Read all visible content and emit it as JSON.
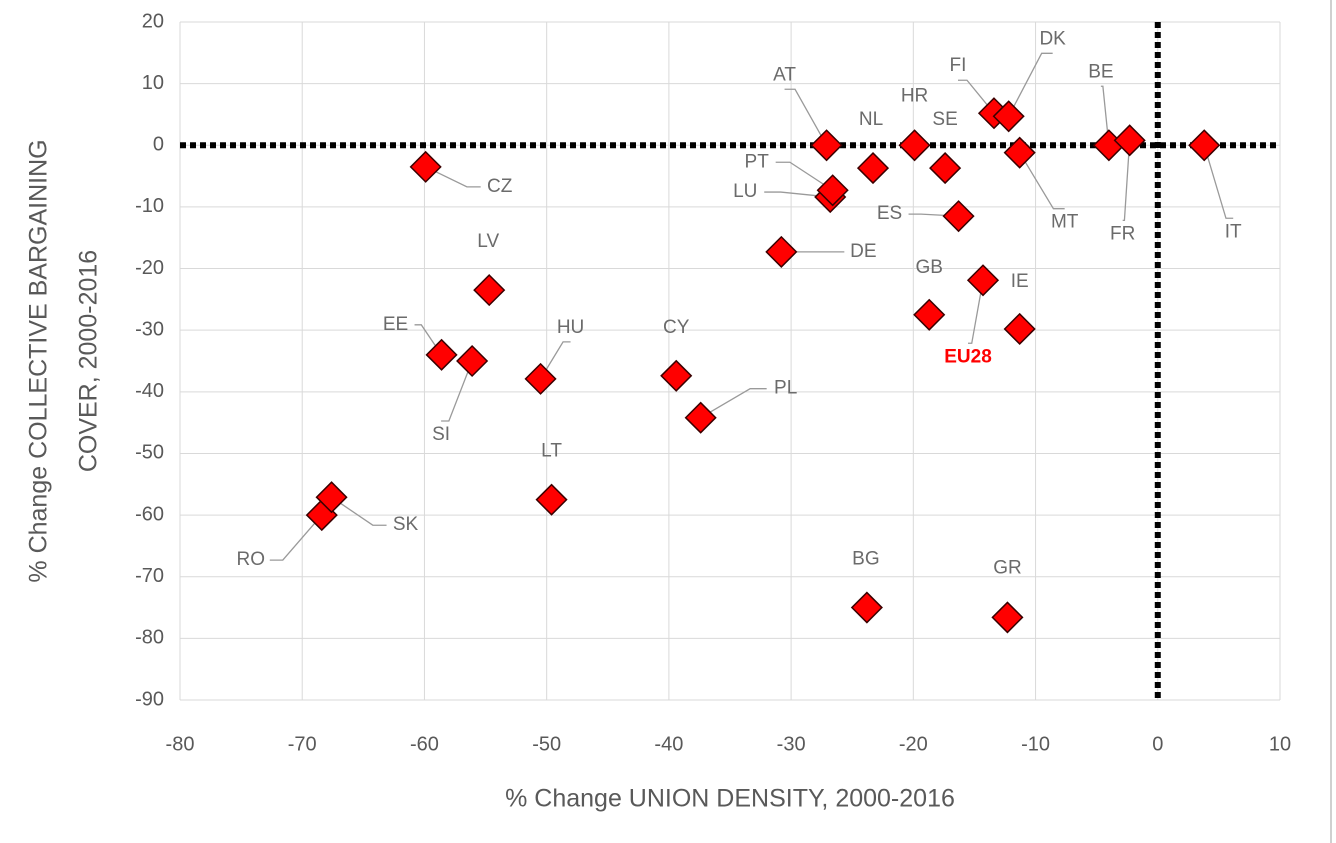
{
  "chart_data": {
    "type": "scatter",
    "xlabel": "% Change UNION DENSITY, 2000-2016",
    "ylabel": [
      "% Change COLLECTIVE BARGAINING",
      "COVER, 2000-2016"
    ],
    "xlim": [
      -80,
      10
    ],
    "ylim": [
      -90,
      20
    ],
    "xticks": [
      -80,
      -70,
      -60,
      -50,
      -40,
      -30,
      -20,
      -10,
      0,
      10
    ],
    "yticks": [
      -90,
      -80,
      -70,
      -60,
      -50,
      -40,
      -30,
      -20,
      -10,
      0,
      10,
      20
    ],
    "grid": true,
    "ref_x": 0,
    "ref_y": 0,
    "color": "#ff0000",
    "points": [
      {
        "label": "AT",
        "x": -27.1,
        "y": 0
      },
      {
        "label": "CZ",
        "x": -59.9,
        "y": -3.5
      },
      {
        "label": "LV",
        "x": -54.7,
        "y": -23.5
      },
      {
        "label": "EE",
        "x": -58.6,
        "y": -34.0
      },
      {
        "label": "SI",
        "x": -56.1,
        "y": -35.0
      },
      {
        "label": "HU",
        "x": -50.5,
        "y": -37.9
      },
      {
        "label": "LT",
        "x": -49.6,
        "y": -57.5
      },
      {
        "label": "RO",
        "x": -68.4,
        "y": -60.0
      },
      {
        "label": "SK",
        "x": -67.6,
        "y": -57.1
      },
      {
        "label": "CY",
        "x": -39.4,
        "y": -37.4
      },
      {
        "label": "PL",
        "x": -37.4,
        "y": -44.2
      },
      {
        "label": "DE",
        "x": -30.8,
        "y": -17.3
      },
      {
        "label": "LU",
        "x": -26.8,
        "y": -8.4
      },
      {
        "label": "PT",
        "x": -26.6,
        "y": -7.3
      },
      {
        "label": "NL",
        "x": -23.3,
        "y": -3.7
      },
      {
        "label": "HR",
        "x": -19.9,
        "y": 0
      },
      {
        "label": "SE",
        "x": -17.4,
        "y": -3.7
      },
      {
        "label": "ES",
        "x": -16.3,
        "y": -11.5
      },
      {
        "label": "GB",
        "x": -18.7,
        "y": -27.5
      },
      {
        "label": "EU28",
        "x": -14.3,
        "y": -21.9,
        "label_color": "#ff0000"
      },
      {
        "label": "IE",
        "x": -11.3,
        "y": -29.8
      },
      {
        "label": "FI",
        "x": -13.4,
        "y": 5.2
      },
      {
        "label": "DK",
        "x": -12.2,
        "y": 4.7
      },
      {
        "label": "MT",
        "x": -11.3,
        "y": -1.2
      },
      {
        "label": "BE",
        "x": -4.0,
        "y": 0
      },
      {
        "label": "FR",
        "x": -2.3,
        "y": 0.8
      },
      {
        "label": "IT",
        "x": 3.8,
        "y": 0
      },
      {
        "label": "BG",
        "x": -23.8,
        "y": -75.0
      },
      {
        "label": "GR",
        "x": -12.3,
        "y": -76.6
      }
    ]
  }
}
